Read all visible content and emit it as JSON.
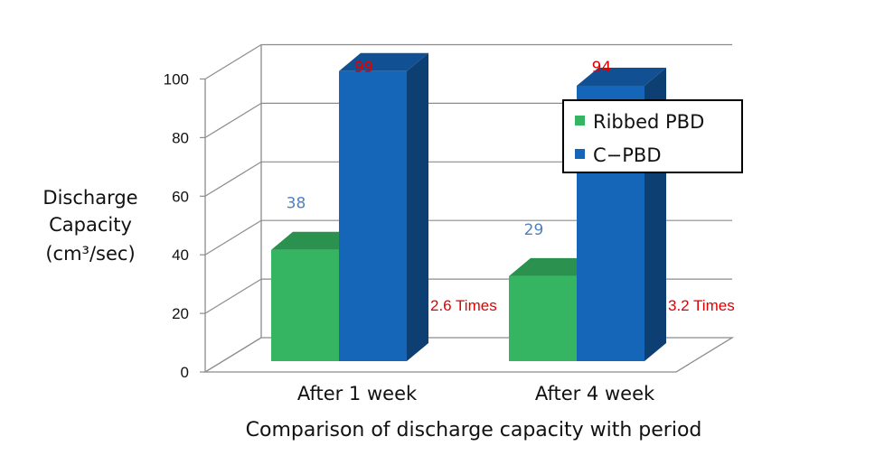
{
  "chart_data": {
    "type": "bar",
    "title": "",
    "xlabel": "Comparison of discharge capacity with period",
    "ylabel_lines": [
      "Discharge",
      "Capacity",
      "(cm³/sec)"
    ],
    "categories": [
      "After 1 week",
      "After 4 week"
    ],
    "series": [
      {
        "name": "Ribbed PBD",
        "values": [
          38,
          29
        ],
        "color": "#35b562",
        "label_color": "#4f81bd"
      },
      {
        "name": "C−PBD",
        "values": [
          99,
          94
        ],
        "color": "#1565b8",
        "label_color": "#e00000"
      }
    ],
    "ylim": [
      0,
      100
    ],
    "yticks": [
      0,
      20,
      40,
      60,
      80,
      100
    ],
    "annotations": [
      "2.6 Times",
      "3.2 Times"
    ],
    "grid": true,
    "legend_position": "top-right",
    "style": "3d-clustered-column"
  }
}
